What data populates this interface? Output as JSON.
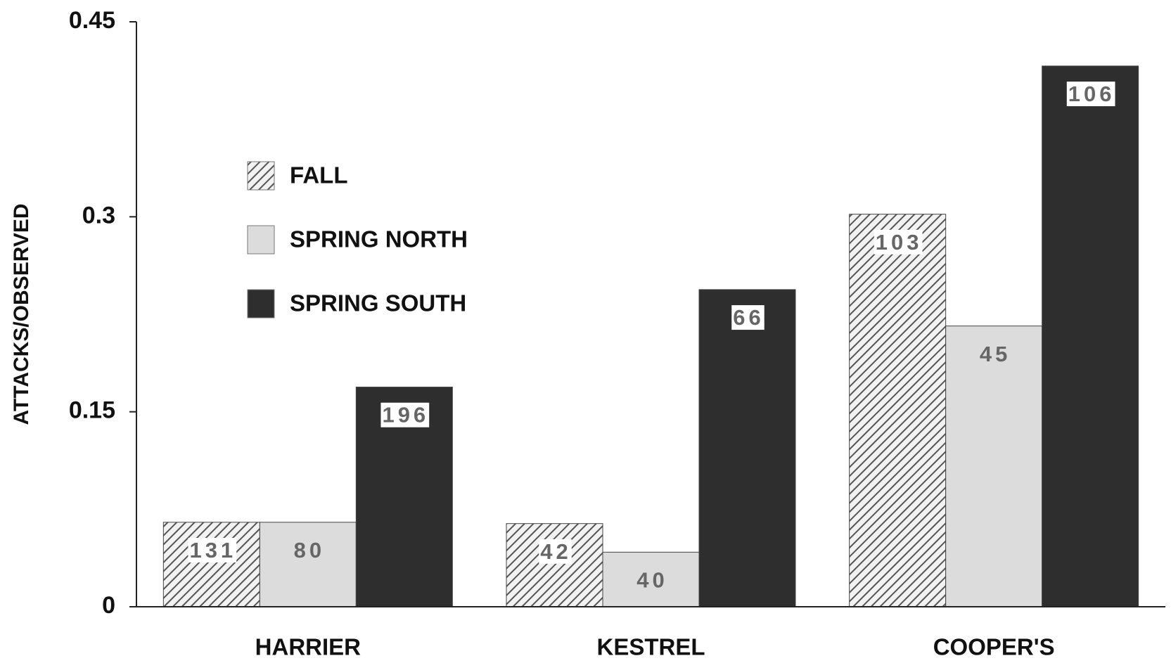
{
  "chart_data": {
    "type": "bar",
    "y_axis_label": "ATTACKS/OBSERVED",
    "categories": [
      "HARRIER",
      "KESTREL",
      "COOPER'S"
    ],
    "series": [
      {
        "name": "FALL",
        "color": "#555555",
        "hatch": true,
        "values": [
          0.065,
          0.064,
          0.302
        ],
        "bar_labels": [
          "131",
          "42",
          "103"
        ]
      },
      {
        "name": "SPRING NORTH",
        "color": "#dcdcdc",
        "hatch": false,
        "values": [
          0.065,
          0.042,
          0.216
        ],
        "bar_labels": [
          "80",
          "40",
          "45"
        ]
      },
      {
        "name": "SPRING SOUTH",
        "color": "#2e2e2e",
        "hatch": false,
        "values": [
          0.169,
          0.244,
          0.416
        ],
        "bar_labels": [
          "196",
          "66",
          "106"
        ]
      }
    ],
    "ylim": [
      0,
      0.45
    ],
    "yticks": [
      0,
      0.15,
      0.3,
      0.45
    ],
    "grid": false,
    "legend": "upper left"
  }
}
